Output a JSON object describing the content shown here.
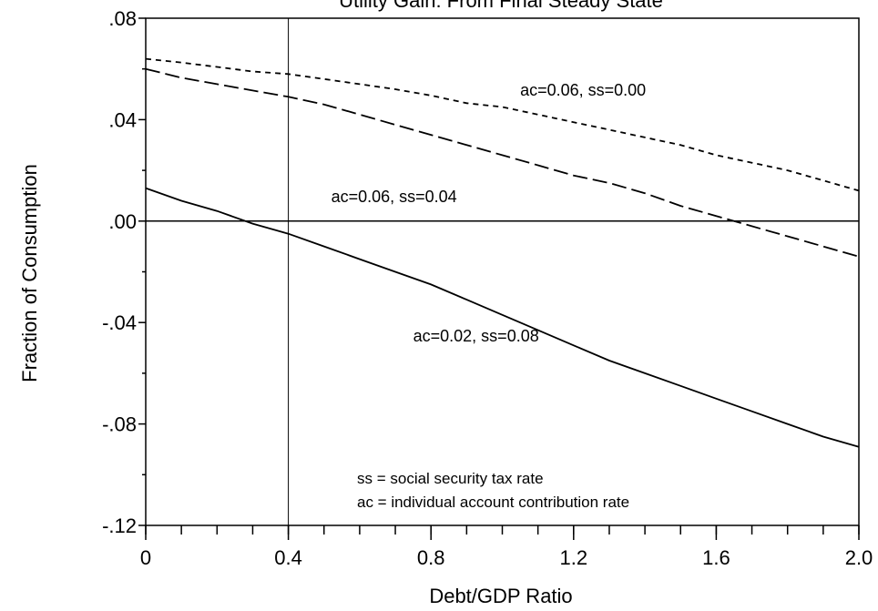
{
  "chart_data": {
    "type": "line",
    "title": "Utility Gain: From Final Steady State",
    "xlabel": "Debt/GDP Ratio",
    "ylabel": "Fraction of Consumption",
    "xlim": [
      0,
      2.0
    ],
    "ylim": [
      -0.12,
      0.08
    ],
    "x_ticks": [
      0,
      0.4,
      0.8,
      1.2,
      1.6,
      2.0
    ],
    "x_tick_labels": [
      "0",
      "0.4",
      "0.8",
      "1.2",
      "1.6",
      "2.0"
    ],
    "y_ticks": [
      0.08,
      0.04,
      0.0,
      -0.04,
      -0.08,
      -0.12
    ],
    "y_tick_labels": [
      ".08",
      ".04",
      ".00",
      "-.04",
      "-.08",
      "-.12"
    ],
    "zero_line": 0.0,
    "reference_vline_x": 0.4,
    "grid": false,
    "x": [
      0,
      0.1,
      0.2,
      0.3,
      0.4,
      0.5,
      0.6,
      0.7,
      0.8,
      0.9,
      1.0,
      1.1,
      1.2,
      1.3,
      1.4,
      1.5,
      1.6,
      1.7,
      1.8,
      1.9,
      2.0
    ],
    "series": [
      {
        "label": "ac=0.06, ss=0.00",
        "style": "short-dash",
        "values": [
          0.064,
          0.0625,
          0.0608,
          0.059,
          0.058,
          0.056,
          0.054,
          0.052,
          0.0495,
          0.0465,
          0.045,
          0.042,
          0.039,
          0.036,
          0.033,
          0.03,
          0.026,
          0.023,
          0.02,
          0.016,
          0.012
        ]
      },
      {
        "label": "ac=0.06, ss=0.04",
        "style": "long-dash",
        "values": [
          0.06,
          0.0565,
          0.054,
          0.0515,
          0.049,
          0.046,
          0.042,
          0.038,
          0.034,
          0.03,
          0.026,
          0.022,
          0.018,
          0.015,
          0.011,
          0.006,
          0.002,
          -0.002,
          -0.006,
          -0.01,
          -0.014
        ]
      },
      {
        "label": "ac=0.02, ss=0.08",
        "style": "solid",
        "values": [
          0.013,
          0.008,
          0.004,
          -0.001,
          -0.005,
          -0.01,
          -0.015,
          -0.02,
          -0.025,
          -0.031,
          -0.037,
          -0.043,
          -0.049,
          -0.055,
          -0.06,
          -0.065,
          -0.07,
          -0.075,
          -0.08,
          -0.085,
          -0.089
        ]
      }
    ],
    "annotations": [
      {
        "text": "ac=0.06, ss=0.00",
        "x": 1.05,
        "y": 0.0495
      },
      {
        "text": "ac=0.06, ss=0.04",
        "x": 0.52,
        "y": 0.0075
      },
      {
        "text": "ac=0.02, ss=0.08",
        "x": 0.75,
        "y": -0.0475
      }
    ],
    "notes": [
      "ss = social security tax rate",
      "ac = individual account contribution rate"
    ]
  }
}
